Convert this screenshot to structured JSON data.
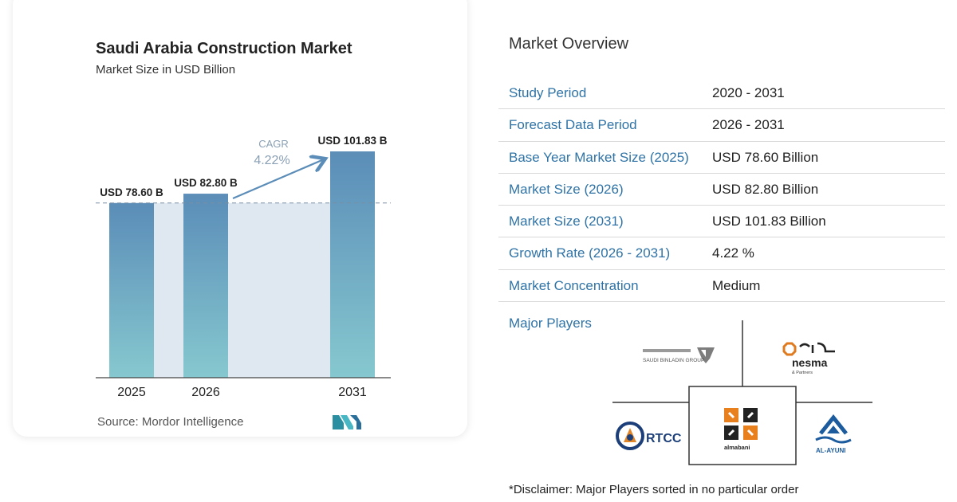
{
  "chart_data": {
    "type": "bar",
    "title": "Saudi Arabia Construction Market",
    "subtitle": "Market Size in USD Billion",
    "categories": [
      "2025",
      "2026",
      "2031"
    ],
    "values": [
      78.6,
      82.8,
      101.83
    ],
    "data_labels": [
      "USD 78.60 B",
      "USD 82.80 B",
      "USD 101.83 B"
    ],
    "xlabel": "",
    "ylabel": "",
    "ylim": [
      0,
      101.83
    ],
    "grid": false,
    "annotation": {
      "label": "CAGR",
      "value": "4.22%"
    },
    "colors": {
      "bar_top": "#5b8db8",
      "bar_bottom": "#86c8cf",
      "band": "#dfe8f1",
      "arrow": "#5b8db8",
      "cagr": "#8aa0b4"
    }
  },
  "source": "Source: Mordor Intelligence",
  "overview": {
    "title": "Market Overview",
    "rows": [
      {
        "key": "Study Period",
        "value": "2020 - 2031"
      },
      {
        "key": "Forecast Data Period",
        "value": "2026 - 2031"
      },
      {
        "key": "Base Year Market Size (2025)",
        "value": "USD 78.60 Billion"
      },
      {
        "key": "Market Size (2026)",
        "value": "USD 82.80 Billion"
      },
      {
        "key": "Market Size (2031)",
        "value": "USD 101.83 Billion"
      },
      {
        "key": "Growth Rate (2026 - 2031)",
        "value": "4.22 %"
      },
      {
        "key": "Market Concentration",
        "value": "Medium"
      }
    ]
  },
  "players": {
    "label": "Major Players",
    "logos": [
      {
        "name": "SAUDI BINLADIN GROUP",
        "icon": "binladin-logo"
      },
      {
        "name": "nesma",
        "sub": "& Partners",
        "icon": "nesma-logo"
      },
      {
        "name": "RTCC",
        "icon": "rtcc-logo"
      },
      {
        "name": "almabani",
        "icon": "almabani-logo"
      },
      {
        "name": "AL-AYUNI",
        "icon": "al-ayuni-logo"
      }
    ]
  },
  "disclaimer": "*Disclaimer: Major Players sorted in no particular order"
}
